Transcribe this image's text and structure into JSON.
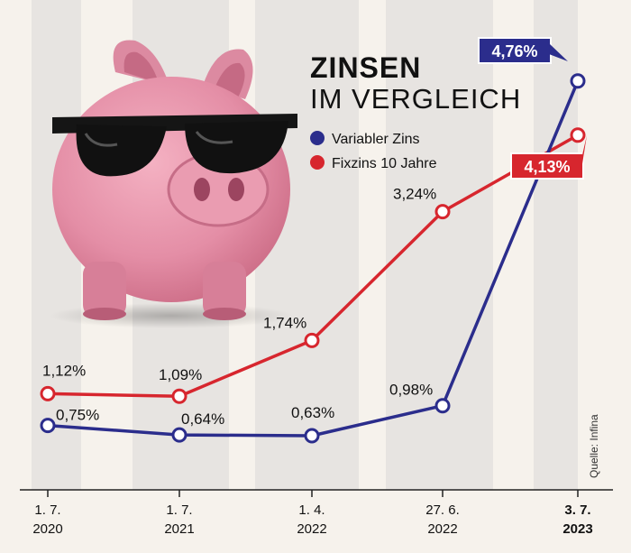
{
  "title": {
    "line1": "ZINSEN",
    "line2": "IM VERGLEICH"
  },
  "legend": [
    {
      "label": "Variabler Zins",
      "color": "#2b2d8c"
    },
    {
      "label": "Fixzins 10 Jahre",
      "color": "#d7262e"
    }
  ],
  "source": "Quelle: Infina",
  "illustration": "piggy-bank-with-sunglasses",
  "chart_data": {
    "type": "line",
    "x_labels": [
      {
        "line1": "1. 7.",
        "line2": "2020"
      },
      {
        "line1": "1. 7.",
        "line2": "2021"
      },
      {
        "line1": "1. 4.",
        "line2": "2022"
      },
      {
        "line1": "27. 6.",
        "line2": "2022"
      },
      {
        "line1": "3. 7.",
        "line2": "2023",
        "bold": true
      }
    ],
    "x_dates": [
      "2020-07-01",
      "2021-07-01",
      "2022-04-01",
      "2022-06-27",
      "2023-07-03"
    ],
    "series": [
      {
        "name": "Variabler Zins",
        "color": "#2b2d8c",
        "values": [
          0.75,
          0.64,
          0.63,
          0.98,
          4.76
        ],
        "labels": [
          "0,75%",
          "0,64%",
          "0,63%",
          "0,98%",
          "4,76%"
        ]
      },
      {
        "name": "Fixzins 10 Jahre",
        "color": "#d7262e",
        "values": [
          1.12,
          1.09,
          1.74,
          3.24,
          4.13
        ],
        "labels": [
          "1,12%",
          "1,09%",
          "1,74%",
          "3,24%",
          "4,13%"
        ]
      }
    ],
    "y_unit": "%",
    "ylim": [
      0,
      5
    ],
    "grid": false,
    "background_stripes": true,
    "legend_position": "top-right"
  }
}
